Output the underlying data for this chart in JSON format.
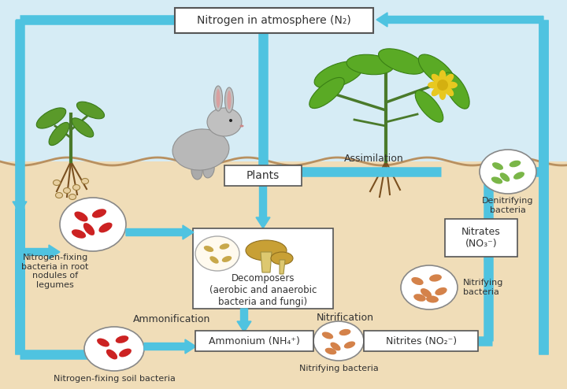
{
  "bg_color": "#fcefd8",
  "sky_color": "#d6ecf5",
  "arrow_color": "#4fc3e0",
  "box_color": "#ffffff",
  "box_edge": "#555555",
  "text_color": "#333333",
  "soil_color": "#f0ddb8",
  "bacteria_red": "#cc2222",
  "bacteria_orange": "#d4824a",
  "bacteria_green": "#7ab648",
  "title_box": "Nitrogen in atmosphere (N₂)",
  "label_plants": "Plants",
  "label_assimilation": "Assimilation",
  "label_decomposers": "Decomposers\n(aerobic and anaerobic\nbacteria and fungi)",
  "label_ammonification": "Ammonification",
  "label_nitrification": "Nitrification",
  "label_ammonium": "Ammonium (NH₄⁺)",
  "label_nitrites": "Nitrites (NO₂⁻)",
  "label_nitrates": "Nitrates\n(NO₃⁻)",
  "label_nfix_root": "Nitrogen-fixing\nbacteria in root\nnodules of\nlegumes",
  "label_nfix_soil": "Nitrogen-fixing soil bacteria",
  "label_nitrifying_mid": "Nitrifying bacteria",
  "label_nitrifying_right": "Nitrifying\nbacteria",
  "label_denitrifying": "Denitrifying\nbacteria"
}
